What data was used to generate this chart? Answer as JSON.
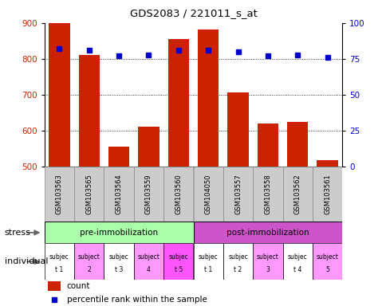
{
  "title": "GDS2083 / 221011_s_at",
  "samples": [
    "GSM103563",
    "GSM103565",
    "GSM103564",
    "GSM103559",
    "GSM103560",
    "GSM104050",
    "GSM103557",
    "GSM103558",
    "GSM103562",
    "GSM103561"
  ],
  "counts": [
    900,
    810,
    557,
    612,
    855,
    882,
    706,
    621,
    624,
    519
  ],
  "percentile_ranks": [
    82,
    81,
    77,
    78,
    81,
    81,
    80,
    77,
    78,
    76
  ],
  "ylim_left": [
    500,
    900
  ],
  "ylim_right": [
    0,
    100
  ],
  "yticks_left": [
    500,
    600,
    700,
    800,
    900
  ],
  "yticks_right": [
    0,
    25,
    50,
    75,
    100
  ],
  "bar_color": "#cc2200",
  "dot_color": "#0000cc",
  "stress_groups": [
    {
      "label": "pre-immobilization",
      "start": 0,
      "end": 5,
      "color": "#aaffaa"
    },
    {
      "label": "post-immobilization",
      "start": 5,
      "end": 10,
      "color": "#cc55cc"
    }
  ],
  "individuals": [
    {
      "line1": "subjec",
      "line2": "t 1",
      "color": "#ffffff"
    },
    {
      "line1": "subject",
      "line2": "2",
      "color": "#ff99ff"
    },
    {
      "line1": "subjec",
      "line2": "t 3",
      "color": "#ffffff"
    },
    {
      "line1": "subject",
      "line2": "4",
      "color": "#ff99ff"
    },
    {
      "line1": "subjec",
      "line2": "t 5",
      "color": "#ff55ff"
    },
    {
      "line1": "subjec",
      "line2": "t 1",
      "color": "#ffffff"
    },
    {
      "line1": "subjec",
      "line2": "t 2",
      "color": "#ffffff"
    },
    {
      "line1": "subject",
      "line2": "3",
      "color": "#ff99ff"
    },
    {
      "line1": "subjec",
      "line2": "t 4",
      "color": "#ffffff"
    },
    {
      "line1": "subject",
      "line2": "5",
      "color": "#ff99ff"
    }
  ],
  "stress_label": "stress",
  "individual_label": "individual",
  "legend_count_color": "#cc2200",
  "legend_dot_color": "#0000cc",
  "tick_label_color_left": "#cc2200",
  "tick_label_color_right": "#0000cc",
  "xticklabel_bg": "#cccccc"
}
